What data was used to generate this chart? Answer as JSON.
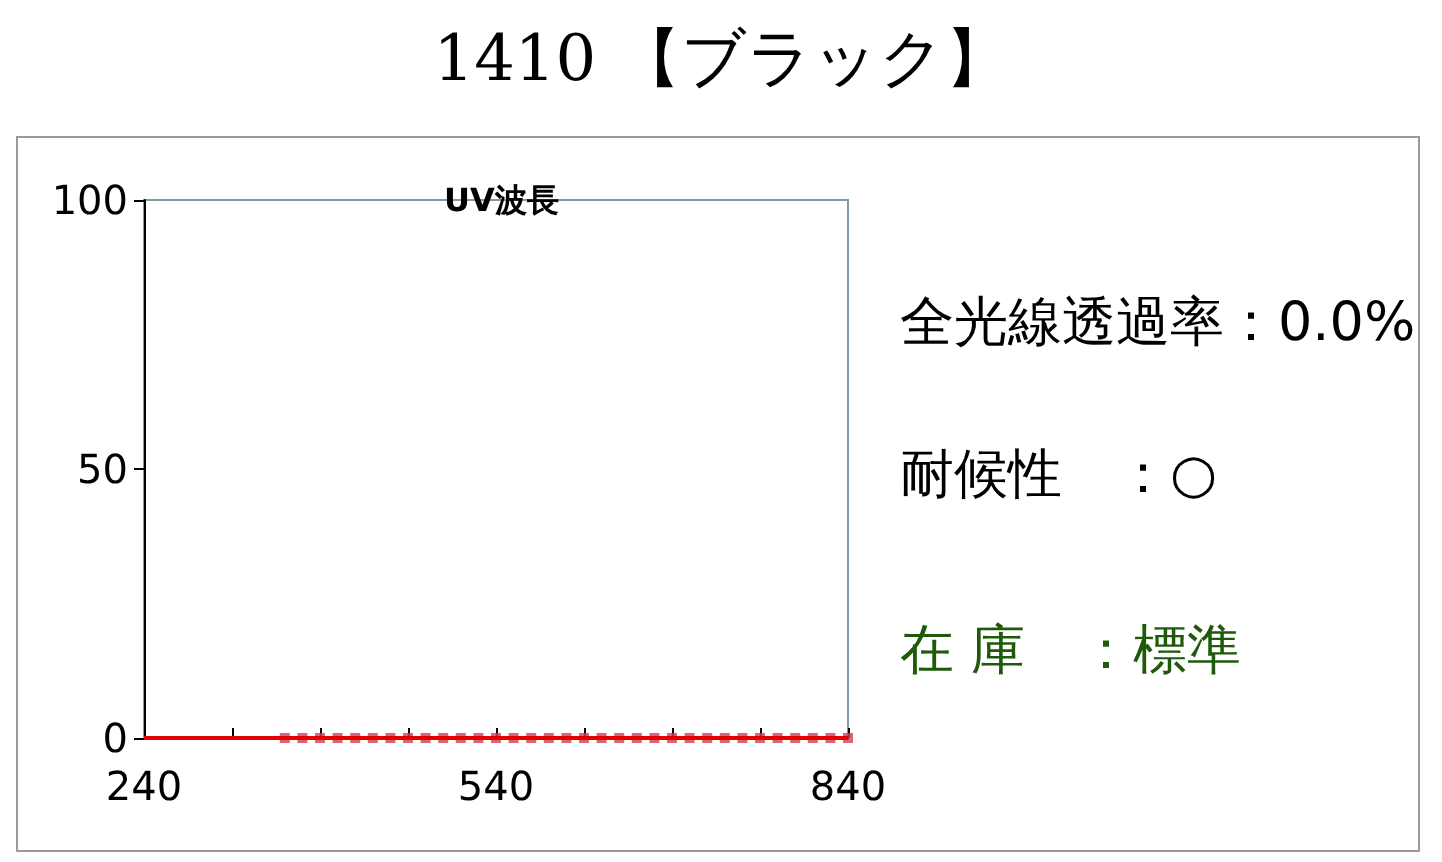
{
  "chart_data": {
    "type": "line",
    "title": "1410 【ブラック】",
    "xlim": [
      240,
      840
    ],
    "xticks": [
      240,
      {
        "value": 315,
        "label": null
      },
      {
        "value": 390,
        "label": null
      },
      {
        "value": 465,
        "label": null
      },
      540,
      {
        "value": 615,
        "label": null
      },
      {
        "value": 690,
        "label": null
      },
      {
        "value": 765,
        "label": null
      },
      840
    ],
    "ylim": [
      0,
      100
    ],
    "yticks": [
      0,
      50,
      100
    ],
    "grid": false,
    "series": [
      {
        "marker": "none",
        "color": "#e00000",
        "x": [
          240,
          840
        ],
        "values": [
          0,
          0
        ]
      },
      {
        "type": "scatter",
        "marker": "square",
        "color": "#d04050",
        "x": [
          360,
          375,
          390,
          405,
          420,
          435,
          450,
          465,
          480,
          495,
          510,
          525,
          540,
          555,
          570,
          585,
          600,
          615,
          630,
          645,
          660,
          675,
          690,
          705,
          720,
          735,
          750,
          765,
          780,
          795,
          810,
          825,
          840
        ],
        "values": [
          0,
          0,
          0,
          0,
          0,
          0,
          0,
          0,
          0,
          0,
          0,
          0,
          0,
          0,
          0,
          0,
          0,
          0,
          0,
          0,
          0,
          0,
          0,
          0,
          0,
          0,
          0,
          0,
          0,
          0,
          0,
          0,
          0
        ]
      }
    ],
    "annotations": [
      "UV波長",
      "全光線透過率：0.0%",
      "耐候性　：○",
      "在 庫　：標準"
    ]
  }
}
